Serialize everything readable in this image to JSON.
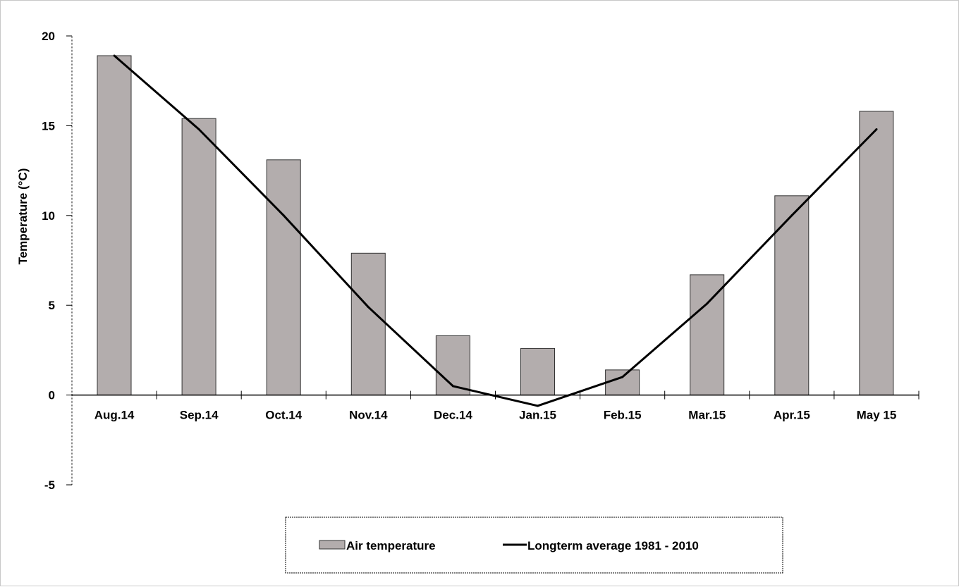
{
  "chart_data": {
    "type": "bar",
    "title": "",
    "xlabel": "",
    "ylabel": "Temperature (°C)",
    "ylim": [
      -5,
      20
    ],
    "yticks": [
      20,
      15,
      10,
      5,
      0,
      -5
    ],
    "grid": false,
    "legend_position": "bottom",
    "categories": [
      "Aug.14",
      "Sep.14",
      "Oct.14",
      "Nov.14",
      "Dec.14",
      "Jan.15",
      "Feb.15",
      "Mar.15",
      "Apr.15",
      "May 15"
    ],
    "series": [
      {
        "name": "Air temperature",
        "kind": "bar",
        "color": "#b3adad",
        "values": [
          18.9,
          15.4,
          13.1,
          7.9,
          3.3,
          2.6,
          1.4,
          6.7,
          11.1,
          15.8
        ]
      },
      {
        "name": "Longterm average 1981 - 2010",
        "kind": "line",
        "color": "#000000",
        "values": [
          18.9,
          14.8,
          10.0,
          4.9,
          0.5,
          -0.6,
          1.0,
          5.1,
          10.0,
          14.8
        ]
      }
    ]
  },
  "colors": {
    "bar_fill": "#b3adad",
    "bar_border": "#333333",
    "line": "#000000",
    "background": "#ffffff"
  }
}
